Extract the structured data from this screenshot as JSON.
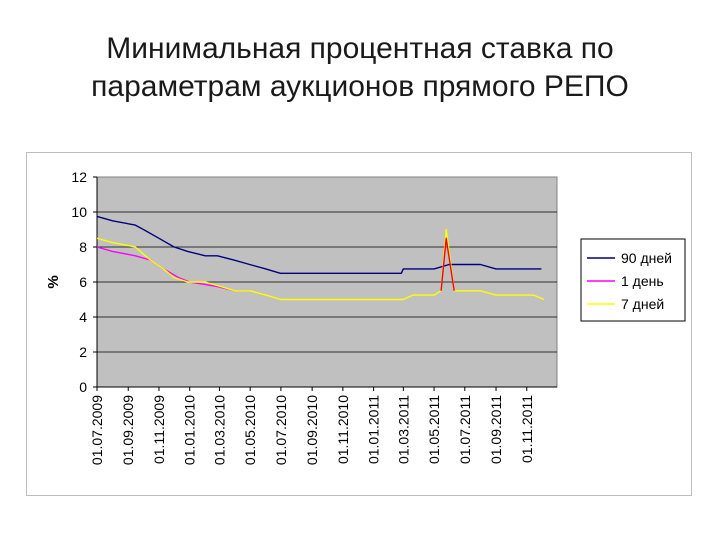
{
  "slide": {
    "title_line1": "Минимальная процентная ставка по",
    "title_line2": "параметрам аукционов прямого РЕПО"
  },
  "chart_data": {
    "type": "line",
    "title": "",
    "xlabel": "",
    "ylabel": "%",
    "ylim": [
      0,
      12
    ],
    "yticks": [
      0,
      2,
      4,
      6,
      8,
      10,
      12
    ],
    "xlim": [
      "2009-07-01",
      "2011-12-31"
    ],
    "xtick_labels": [
      "01.07.2009",
      "01.09.2009",
      "01.11.2009",
      "01.01.2010",
      "01.03.2010",
      "01.05.2010",
      "01.07.2010",
      "01.09.2010",
      "01.11.2010",
      "01.01.2011",
      "01.03.2011",
      "01.05.2011",
      "01.07.2011",
      "01.09.2011",
      "01.11.2011"
    ],
    "xtick_dates": [
      "2009-07-01",
      "2009-09-01",
      "2009-11-01",
      "2010-01-01",
      "2010-03-01",
      "2010-05-01",
      "2010-07-01",
      "2010-09-01",
      "2010-11-01",
      "2011-01-01",
      "2011-03-01",
      "2011-05-01",
      "2011-07-01",
      "2011-09-01",
      "2011-11-01"
    ],
    "grid": "horizontal",
    "plot_background": "#c0c0c0",
    "legend_position": "right",
    "series": [
      {
        "name": "90 дней",
        "color": "#000080",
        "points": [
          [
            "2009-07-01",
            9.75
          ],
          [
            "2009-08-01",
            9.5
          ],
          [
            "2009-09-15",
            9.25
          ],
          [
            "2009-10-01",
            9.0
          ],
          [
            "2009-11-01",
            8.5
          ],
          [
            "2009-12-01",
            8.0
          ],
          [
            "2009-12-28",
            7.75
          ],
          [
            "2010-02-01",
            7.5
          ],
          [
            "2010-02-25",
            7.5
          ],
          [
            "2010-03-30",
            7.25
          ],
          [
            "2010-04-30",
            7.0
          ],
          [
            "2010-06-01",
            6.75
          ],
          [
            "2010-06-30",
            6.5
          ],
          [
            "2011-02-25",
            6.5
          ],
          [
            "2011-03-01",
            6.75
          ],
          [
            "2011-05-01",
            6.75
          ],
          [
            "2011-05-31",
            7.0
          ],
          [
            "2011-06-15",
            7.0
          ],
          [
            "2011-08-01",
            7.0
          ],
          [
            "2011-09-01",
            6.75
          ],
          [
            "2011-11-30",
            6.75
          ]
        ]
      },
      {
        "name": "1 день",
        "color": "#ff00ff",
        "points": [
          [
            "2009-07-01",
            8.0
          ],
          [
            "2009-08-01",
            7.75
          ],
          [
            "2009-09-15",
            7.5
          ],
          [
            "2009-10-15",
            7.25
          ],
          [
            "2009-11-10",
            6.75
          ],
          [
            "2009-12-10",
            6.25
          ],
          [
            "2010-01-01",
            6.0
          ],
          [
            "2010-02-24",
            5.75
          ],
          [
            "2010-04-01",
            5.5
          ],
          [
            "2010-05-01",
            5.5
          ]
        ]
      },
      {
        "name": "7 дней",
        "color": "#ffff00",
        "points": [
          [
            "2009-07-01",
            8.5
          ],
          [
            "2009-08-01",
            8.25
          ],
          [
            "2009-09-15",
            8.0
          ],
          [
            "2009-10-15",
            7.25
          ],
          [
            "2009-11-10",
            6.75
          ],
          [
            "2009-12-01",
            6.25
          ],
          [
            "2009-12-28",
            6.0
          ],
          [
            "2010-02-01",
            6.0
          ],
          [
            "2010-04-01",
            5.5
          ],
          [
            "2010-05-01",
            5.5
          ],
          [
            "2010-06-01",
            5.25
          ],
          [
            "2010-07-01",
            5.0
          ],
          [
            "2011-03-01",
            5.0
          ],
          [
            "2011-03-20",
            5.25
          ],
          [
            "2011-05-01",
            5.25
          ],
          [
            "2011-05-15",
            5.5
          ],
          [
            "2011-05-25",
            9.0
          ],
          [
            "2011-06-10",
            5.5
          ],
          [
            "2011-08-01",
            5.5
          ],
          [
            "2011-09-01",
            5.25
          ],
          [
            "2011-11-15",
            5.25
          ],
          [
            "2011-12-05",
            5.0
          ]
        ]
      },
      {
        "name": "",
        "color": "#ff0000",
        "points": [
          [
            "2011-05-15",
            5.5
          ],
          [
            "2011-05-25",
            8.5
          ],
          [
            "2011-06-10",
            5.5
          ]
        ]
      }
    ]
  }
}
